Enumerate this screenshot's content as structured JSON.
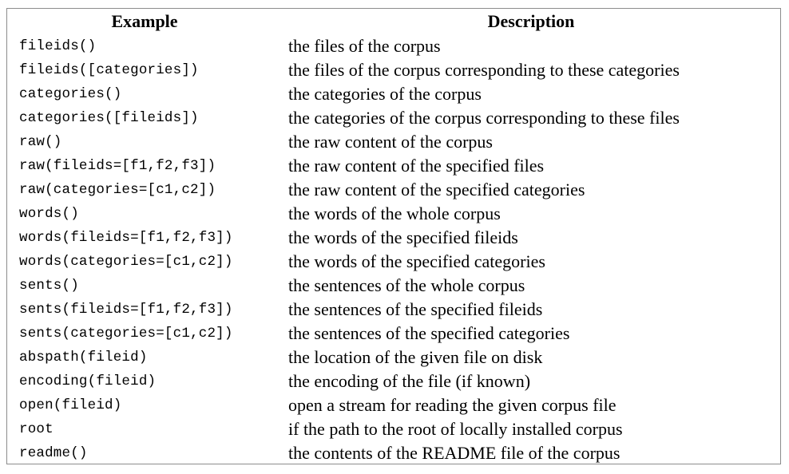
{
  "table": {
    "headers": {
      "example": "Example",
      "description": "Description"
    },
    "rows": [
      {
        "example": "fileids()",
        "description": "the files of the corpus"
      },
      {
        "example": "fileids([categories])",
        "description": "the files of the corpus corresponding to these categories"
      },
      {
        "example": "categories()",
        "description": "the categories of the corpus"
      },
      {
        "example": "categories([fileids])",
        "description": "the categories of the corpus corresponding to these files"
      },
      {
        "example": "raw()",
        "description": "the raw content of the corpus"
      },
      {
        "example": "raw(fileids=[f1,f2,f3])",
        "description": "the raw content of the specified files"
      },
      {
        "example": "raw(categories=[c1,c2])",
        "description": "the raw content of the specified categories"
      },
      {
        "example": "words()",
        "description": "the words of the whole corpus"
      },
      {
        "example": "words(fileids=[f1,f2,f3])",
        "description": "the words of the specified fileids"
      },
      {
        "example": "words(categories=[c1,c2])",
        "description": "the words of the specified categories"
      },
      {
        "example": "sents()",
        "description": "the sentences of the whole corpus"
      },
      {
        "example": "sents(fileids=[f1,f2,f3])",
        "description": "the sentences of the specified fileids"
      },
      {
        "example": "sents(categories=[c1,c2])",
        "description": "the sentences of the specified categories"
      },
      {
        "example": "abspath(fileid)",
        "description": "the location of the given file on disk"
      },
      {
        "example": "encoding(fileid)",
        "description": "the encoding of the file (if known)"
      },
      {
        "example": "open(fileid)",
        "description": "open a stream for reading the given corpus file"
      },
      {
        "example": "root",
        "description": "if the path to the root of locally installed corpus"
      },
      {
        "example": "readme()",
        "description": "the contents of the README file of the corpus"
      }
    ]
  }
}
